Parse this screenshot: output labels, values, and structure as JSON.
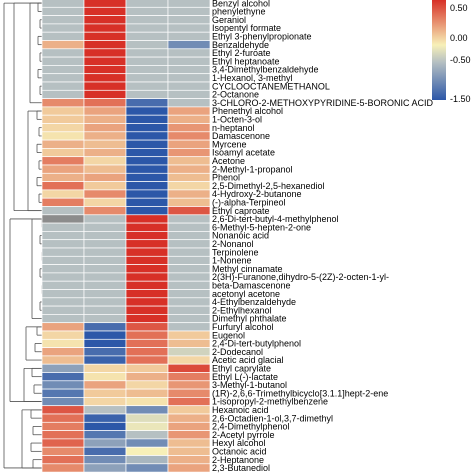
{
  "chart_data": {
    "type": "heatmap",
    "title": "",
    "xlabel": "",
    "ylabel": "",
    "columns": 4,
    "rows": [
      "Benzyl alcohol",
      "phenylethyne",
      "Geraniol",
      "Isopentyl formate",
      "Ethyl 3-phenylpropionate",
      "Benzaldehyde",
      "Ethyl 2-furoate",
      "Ethyl heptanoate",
      "3,4-Dimethylbenzaldehyde",
      "1-Hexanol, 3-methyl",
      "CYCLOOCTANEMETHANOL",
      "2-Octanone",
      "3-CHLORO-2-METHOXYPYRIDINE-5-BORONIC ACID",
      "Phenethyl alcohol",
      "1-Octen-3-ol",
      "n-heptanol",
      "Damascenone",
      "Myrcene",
      "Isoamyl acetate",
      "Acetone",
      "2-Methyl-1-propanol",
      "Phenol",
      "2,5-Dimethyl-2,5-hexanediol",
      "4-Hydroxy-2-butanone",
      "(-)-alpha-Terpineol",
      "Ethyl caproate",
      "2,6-Di-tert-butyl-4-methylphenol",
      "6-Methyl-5-hepten-2-one",
      "Nonanoic acid",
      "2-Nonanol",
      "Terpinolene",
      "1-Nonene",
      "Methyl cinnamate",
      "2(3H)-Furanone,dihydro-5-(2Z)-2-octen-1-yl-",
      "beta-Damascenone",
      "acetonyl acetone",
      "4-Ethylbenzaldehyde",
      "2-Ethylhexanol",
      "Dimethyl phthalate",
      "Furfuryl alcohol",
      "Eugenol",
      "2,4-Di-tert-butylphenol",
      "2-Dodecanol",
      "Acetic acid glacial",
      "Ethyl caprylate",
      "Ethyl L(-)-lactate",
      "3-Methyl-1-butanol",
      "(1R)-2,6,6-Trimethylbicyclo[3.1.1]hept-2-ene",
      "1-isopropyl-2-methylbenzene",
      "Hexanoic acid",
      "2,6-Octadien-1-ol,3,7-dimethyl",
      "2,4-Dimethylphenol",
      "2-Acetyl pyrrole",
      "Hexyl alcohol",
      "Octanoic acid",
      "2-Heptanone",
      "2,3-Butanediol"
    ],
    "values": [
      [
        -0.5,
        1.5,
        -0.5,
        -0.5
      ],
      [
        -0.5,
        1.5,
        -0.5,
        -0.5
      ],
      [
        -0.5,
        1.5,
        -0.5,
        -0.5
      ],
      [
        -0.5,
        1.5,
        -0.5,
        -0.5
      ],
      [
        -0.5,
        1.5,
        -0.5,
        -0.5
      ],
      [
        0.5,
        1.5,
        -0.5,
        -1.0
      ],
      [
        -0.5,
        1.5,
        -0.5,
        -0.5
      ],
      [
        -0.5,
        1.5,
        -0.5,
        -0.5
      ],
      [
        -0.5,
        1.5,
        -0.5,
        -0.5
      ],
      [
        -0.5,
        1.5,
        -0.5,
        -0.5
      ],
      [
        -0.5,
        1.5,
        -0.5,
        -0.5
      ],
      [
        -0.5,
        1.5,
        -0.5,
        -0.5
      ],
      [
        0.8,
        1.0,
        -1.3,
        -0.5
      ],
      [
        0.3,
        0.6,
        -1.5,
        0.6
      ],
      [
        0.3,
        0.5,
        -1.5,
        0.5
      ],
      [
        0.2,
        0.6,
        -1.5,
        0.7
      ],
      [
        0.1,
        0.5,
        -1.5,
        0.8
      ],
      [
        0.5,
        0.4,
        -1.5,
        0.6
      ],
      [
        0.3,
        0.5,
        -1.5,
        0.7
      ],
      [
        0.9,
        0.2,
        -1.5,
        0.4
      ],
      [
        0.6,
        0.4,
        -1.5,
        0.5
      ],
      [
        0.5,
        0.6,
        -1.5,
        0.4
      ],
      [
        1.0,
        0.3,
        -1.5,
        0.2
      ],
      [
        0.2,
        0.8,
        -1.5,
        0.5
      ],
      [
        0.9,
        0.2,
        -1.5,
        0.4
      ],
      [
        -0.5,
        0.8,
        -1.5,
        1.2
      ],
      [
        -1.0,
        -0.5,
        1.5,
        -0.5
      ],
      [
        -0.5,
        -0.5,
        1.5,
        -0.5
      ],
      [
        -0.5,
        -0.5,
        1.5,
        -0.5
      ],
      [
        -0.5,
        -0.5,
        1.5,
        -0.5
      ],
      [
        -0.5,
        -0.5,
        1.5,
        -0.5
      ],
      [
        -0.5,
        -0.5,
        1.5,
        -0.5
      ],
      [
        -0.5,
        -0.5,
        1.5,
        -0.5
      ],
      [
        -0.5,
        -0.5,
        1.5,
        -0.5
      ],
      [
        -0.5,
        -0.5,
        1.5,
        -0.5
      ],
      [
        -0.5,
        -0.5,
        1.5,
        -0.5
      ],
      [
        -0.5,
        -0.5,
        1.5,
        -0.5
      ],
      [
        -0.5,
        -0.5,
        1.5,
        -0.5
      ],
      [
        -0.5,
        -0.5,
        1.5,
        -0.5
      ],
      [
        0.6,
        -1.3,
        1.2,
        -0.5
      ],
      [
        0.2,
        -1.5,
        1.0,
        0.3
      ],
      [
        0.1,
        -1.5,
        1.0,
        0.4
      ],
      [
        0.6,
        -1.3,
        1.0,
        -0.3
      ],
      [
        0.4,
        -1.4,
        1.0,
        0.2
      ],
      [
        -0.8,
        0.2,
        0.3,
        1.3
      ],
      [
        -1.3,
        0.1,
        0.5,
        0.9
      ],
      [
        -1.0,
        0.6,
        0.2,
        0.7
      ],
      [
        -1.2,
        0.3,
        0.4,
        0.8
      ],
      [
        -1.0,
        0.2,
        0.1,
        1.0
      ],
      [
        1.2,
        -0.5,
        -1.0,
        0.3
      ],
      [
        1.0,
        -1.4,
        -0.2,
        0.5
      ],
      [
        0.9,
        -1.5,
        -0.1,
        0.6
      ],
      [
        1.0,
        -1.2,
        -0.5,
        0.7
      ],
      [
        1.1,
        -0.8,
        -1.0,
        0.4
      ],
      [
        0.8,
        -1.3,
        0.0,
        0.4
      ],
      [
        1.0,
        -1.0,
        -0.6,
        0.5
      ],
      [
        0.8,
        -0.8,
        -1.0,
        0.6
      ]
    ],
    "color_scale": {
      "ticks": [
        "0.50",
        "0.00",
        "-0.50",
        "-1.50"
      ],
      "high_color": "#d73027",
      "mid_color": "#f7f0b8",
      "neutral_color": "#b6c0c2",
      "low_color": "#2c57a8",
      "outlier_color": "#8c8c8c"
    }
  }
}
